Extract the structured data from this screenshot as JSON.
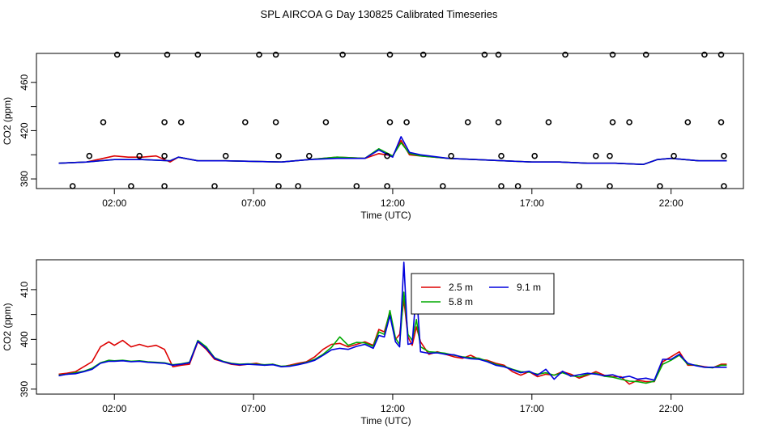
{
  "title": "SPL AIRCOA G  Day 130825  Calibrated Timeseries",
  "colors": {
    "red": "#dd0000",
    "green": "#00aa00",
    "blue": "#0000dd",
    "axis": "#000000"
  },
  "chart_data": [
    {
      "type": "scatter",
      "title": "",
      "xlabel": "Time (UTC)",
      "ylabel": "CO2 (ppm)",
      "xlim": [
        -0.8,
        24.6
      ],
      "ylim": [
        372,
        484
      ],
      "x_ticks": [
        2,
        7,
        12,
        17,
        22
      ],
      "x_tick_labels": [
        "02:00",
        "07:00",
        "12:00",
        "17:00",
        "22:00"
      ],
      "y_ticks": [
        380,
        420,
        460
      ],
      "y_tick_labels": [
        "380",
        "420",
        "460"
      ],
      "minor_y_ticks": [
        400,
        440
      ],
      "marker_series": {
        "name": "calibration markers",
        "x": [
          2.1,
          3.9,
          5.0,
          7.2,
          7.8,
          10.2,
          11.9,
          13.1,
          15.3,
          15.8,
          18.2,
          19.9,
          21.1,
          23.2,
          23.8,
          1.6,
          3.8,
          4.4,
          6.7,
          7.8,
          9.6,
          11.9,
          12.5,
          14.7,
          15.8,
          17.6,
          19.9,
          20.5,
          22.6,
          23.8,
          1.1,
          2.9,
          3.8,
          6.0,
          7.9,
          9.0,
          11.8,
          14.1,
          15.9,
          17.1,
          19.3,
          19.8,
          22.1,
          23.9,
          0.5,
          2.6,
          3.8,
          5.6,
          7.9,
          8.6,
          10.7,
          11.8,
          13.8,
          15.9,
          16.5,
          18.7,
          19.8,
          21.6,
          23.9
        ],
        "y": [
          483,
          483,
          483,
          483,
          483,
          483,
          483,
          483,
          483,
          483,
          483,
          483,
          483,
          483,
          483,
          427,
          427,
          427,
          427,
          427,
          427,
          427,
          427,
          427,
          427,
          427,
          427,
          427,
          427,
          427,
          399,
          399,
          399,
          399,
          399,
          399,
          399,
          399,
          399,
          399,
          399,
          399,
          399,
          399,
          374,
          374,
          374,
          374,
          374,
          374,
          374,
          374,
          374,
          374,
          374,
          374,
          374,
          374,
          374
        ]
      },
      "series": [
        {
          "name": "2.5 m",
          "color": "#dd0000",
          "x": [
            0,
            1,
            1.6,
            2,
            2.5,
            3,
            3.5,
            4,
            4.3,
            5,
            6,
            8,
            9,
            10,
            11,
            11.5,
            12,
            12.3,
            12.6,
            13,
            14,
            15,
            16,
            17,
            18,
            19,
            20,
            21,
            21.5,
            22,
            23,
            24
          ],
          "y": [
            393,
            394,
            397,
            399,
            398,
            398,
            399,
            394,
            398,
            395,
            395,
            394,
            396,
            398,
            397,
            401,
            399,
            412,
            400,
            399,
            397,
            396,
            395,
            394,
            394,
            393,
            393,
            392,
            396,
            397,
            395,
            395
          ]
        },
        {
          "name": "5.8 m",
          "color": "#00aa00",
          "x": [
            0,
            1,
            2,
            3,
            4,
            4.3,
            5,
            6,
            8,
            9,
            10,
            11,
            11.5,
            12,
            12.3,
            12.6,
            13,
            14,
            15,
            16,
            17,
            18,
            19,
            20,
            21,
            21.5,
            22,
            23,
            24
          ],
          "y": [
            393,
            394,
            396,
            396,
            395,
            398,
            395,
            395,
            394,
            396,
            398,
            397,
            405,
            399,
            410,
            401,
            399,
            397,
            396,
            395,
            394,
            394,
            393,
            393,
            392,
            396,
            397,
            395,
            395
          ]
        },
        {
          "name": "9.1 m",
          "color": "#0000dd",
          "x": [
            0,
            1,
            2,
            3,
            4,
            4.3,
            5,
            6,
            8,
            9,
            10,
            11,
            11.5,
            12,
            12.3,
            12.6,
            13,
            14,
            15,
            16,
            17,
            18,
            19,
            20,
            21,
            21.5,
            22,
            23,
            24
          ],
          "y": [
            393,
            394,
            396,
            396,
            395,
            398,
            395,
            395,
            394,
            396,
            397,
            397,
            404,
            398,
            415,
            402,
            400,
            397,
            396,
            395,
            394,
            394,
            393,
            393,
            392,
            396,
            397,
            395,
            395
          ]
        }
      ]
    },
    {
      "type": "line",
      "title": "",
      "xlabel": "Time (UTC)",
      "ylabel": "CO2 (ppm)",
      "xlim": [
        -0.8,
        24.6
      ],
      "ylim": [
        389,
        416
      ],
      "x_ticks": [
        2,
        7,
        12,
        17,
        22
      ],
      "x_tick_labels": [
        "02:00",
        "07:00",
        "12:00",
        "17:00",
        "22:00"
      ],
      "y_ticks": [
        390,
        400,
        410
      ],
      "y_tick_labels": [
        "390",
        "400",
        "410"
      ],
      "minor_y_ticks": [
        395,
        405
      ],
      "legend": {
        "position": "top-right"
      },
      "series": [
        {
          "name": "2.5 m",
          "color": "#dd0000",
          "x": [
            0,
            0.3,
            0.6,
            0.9,
            1.2,
            1.5,
            1.8,
            2.0,
            2.3,
            2.6,
            2.9,
            3.2,
            3.5,
            3.8,
            4.1,
            4.4,
            4.7,
            5.0,
            5.3,
            5.6,
            5.9,
            6.2,
            6.5,
            6.8,
            7.1,
            7.4,
            7.7,
            8.0,
            8.3,
            8.6,
            8.9,
            9.2,
            9.5,
            9.8,
            10.1,
            10.4,
            10.7,
            11.0,
            11.3,
            11.5,
            11.7,
            11.9,
            12.1,
            12.25,
            12.4,
            12.55,
            12.7,
            12.85,
            13.0,
            13.3,
            13.6,
            13.9,
            14.2,
            14.5,
            14.8,
            15.1,
            15.4,
            15.7,
            16.0,
            16.3,
            16.6,
            16.9,
            17.2,
            17.5,
            17.8,
            18.1,
            18.4,
            18.7,
            19.0,
            19.3,
            19.6,
            19.9,
            20.2,
            20.5,
            20.8,
            21.1,
            21.4,
            21.7,
            22.0,
            22.3,
            22.6,
            22.9,
            23.2,
            23.5,
            23.8,
            24.0
          ],
          "y": [
            393.0,
            393.2,
            393.5,
            394.5,
            395.5,
            398.5,
            399.5,
            398.8,
            399.8,
            398.5,
            399.0,
            398.5,
            398.8,
            398.0,
            394.5,
            394.8,
            395.0,
            399.5,
            398.0,
            396.0,
            395.5,
            395.0,
            394.8,
            395.0,
            395.2,
            394.8,
            395.0,
            394.5,
            394.8,
            395.2,
            395.5,
            396.5,
            398.0,
            399.0,
            399.2,
            398.5,
            399.0,
            399.5,
            398.8,
            402.0,
            401.5,
            405.5,
            400.0,
            401.0,
            408.0,
            400.5,
            398.8,
            402.5,
            399.5,
            397.0,
            397.5,
            397.0,
            396.5,
            396.2,
            396.8,
            396.0,
            395.8,
            395.2,
            394.8,
            393.5,
            392.8,
            393.5,
            392.5,
            393.0,
            392.8,
            393.5,
            393.0,
            392.2,
            392.8,
            393.5,
            392.8,
            392.5,
            392.5,
            391.0,
            391.8,
            391.5,
            391.5,
            395.5,
            396.5,
            397.5,
            394.8,
            394.8,
            394.5,
            394.3,
            395.0,
            395.0
          ]
        },
        {
          "name": "5.8 m",
          "color": "#00aa00",
          "x": [
            0,
            0.3,
            0.6,
            0.9,
            1.2,
            1.5,
            1.8,
            2.0,
            2.3,
            2.6,
            2.9,
            3.2,
            3.5,
            3.8,
            4.1,
            4.4,
            4.7,
            5.0,
            5.3,
            5.6,
            5.9,
            6.2,
            6.5,
            6.8,
            7.1,
            7.4,
            7.7,
            8.0,
            8.3,
            8.6,
            8.9,
            9.2,
            9.5,
            9.8,
            10.1,
            10.4,
            10.7,
            11.0,
            11.3,
            11.5,
            11.7,
            11.9,
            12.1,
            12.25,
            12.4,
            12.55,
            12.7,
            12.85,
            13.0,
            13.3,
            13.6,
            13.9,
            14.2,
            14.5,
            14.8,
            15.1,
            15.4,
            15.7,
            16.0,
            16.3,
            16.6,
            16.9,
            17.2,
            17.5,
            17.8,
            18.1,
            18.4,
            18.7,
            19.0,
            19.3,
            19.6,
            19.9,
            20.2,
            20.5,
            20.8,
            21.1,
            21.4,
            21.7,
            22.0,
            22.3,
            22.6,
            22.9,
            23.2,
            23.5,
            23.8,
            24.0
          ],
          "y": [
            392.8,
            393.0,
            393.3,
            393.6,
            394.2,
            395.3,
            395.8,
            395.7,
            395.8,
            395.6,
            395.7,
            395.5,
            395.4,
            395.3,
            394.9,
            395.1,
            395.4,
            399.8,
            398.5,
            396.3,
            395.6,
            395.2,
            395.0,
            395.1,
            395.0,
            394.9,
            395.0,
            394.6,
            394.7,
            395.0,
            395.4,
            396.0,
            397.0,
            398.4,
            400.5,
            398.8,
            399.4,
            399.3,
            398.6,
            401.5,
            401.0,
            405.8,
            400.2,
            399.0,
            409.5,
            401.0,
            399.8,
            404.0,
            398.5,
            397.5,
            397.4,
            397.2,
            396.8,
            396.5,
            396.3,
            396.2,
            395.6,
            395.0,
            394.6,
            394.0,
            393.5,
            393.4,
            393.0,
            393.3,
            392.8,
            393.3,
            392.7,
            392.5,
            393.0,
            393.2,
            392.6,
            392.4,
            392.0,
            391.6,
            391.5,
            391.2,
            391.6,
            395.0,
            395.8,
            396.8,
            395.0,
            394.8,
            394.4,
            394.3,
            394.8,
            394.8
          ]
        },
        {
          "name": "9.1 m",
          "color": "#0000dd",
          "x": [
            0,
            0.3,
            0.6,
            0.9,
            1.2,
            1.5,
            1.8,
            2.0,
            2.3,
            2.6,
            2.9,
            3.2,
            3.5,
            3.8,
            4.1,
            4.4,
            4.7,
            5.0,
            5.3,
            5.6,
            5.9,
            6.2,
            6.5,
            6.8,
            7.1,
            7.4,
            7.7,
            8.0,
            8.3,
            8.6,
            8.9,
            9.2,
            9.5,
            9.8,
            10.1,
            10.4,
            10.7,
            11.0,
            11.3,
            11.5,
            11.7,
            11.9,
            12.1,
            12.25,
            12.4,
            12.55,
            12.7,
            12.85,
            13.0,
            13.3,
            13.6,
            13.9,
            14.2,
            14.5,
            14.8,
            15.1,
            15.4,
            15.7,
            16.0,
            16.3,
            16.6,
            16.9,
            17.2,
            17.5,
            17.8,
            18.1,
            18.4,
            18.7,
            19.0,
            19.3,
            19.6,
            19.9,
            20.2,
            20.5,
            20.8,
            21.1,
            21.4,
            21.7,
            22.0,
            22.3,
            22.6,
            22.9,
            23.2,
            23.5,
            23.8,
            24.0
          ],
          "y": [
            392.7,
            393.0,
            393.1,
            393.5,
            394.0,
            395.2,
            395.6,
            395.6,
            395.7,
            395.5,
            395.6,
            395.4,
            395.3,
            395.2,
            394.8,
            395.0,
            395.3,
            399.6,
            398.2,
            396.2,
            395.5,
            395.1,
            394.9,
            395.0,
            394.9,
            394.8,
            394.9,
            394.5,
            394.6,
            394.9,
            395.3,
            395.8,
            396.8,
            397.9,
            398.2,
            398.0,
            398.6,
            399.0,
            398.2,
            400.8,
            400.5,
            404.8,
            399.5,
            398.5,
            415.5,
            399.0,
            399.2,
            410.0,
            397.5,
            397.2,
            397.3,
            397.0,
            396.9,
            396.4,
            396.1,
            396.0,
            395.5,
            394.8,
            394.5,
            393.9,
            393.3,
            393.6,
            392.8,
            394.0,
            392.0,
            393.6,
            392.6,
            392.9,
            393.2,
            393.0,
            392.7,
            392.9,
            392.3,
            392.6,
            392.0,
            392.2,
            391.8,
            396.0,
            396.0,
            397.0,
            395.2,
            394.7,
            394.4,
            394.4,
            394.4,
            394.4
          ]
        }
      ]
    }
  ]
}
